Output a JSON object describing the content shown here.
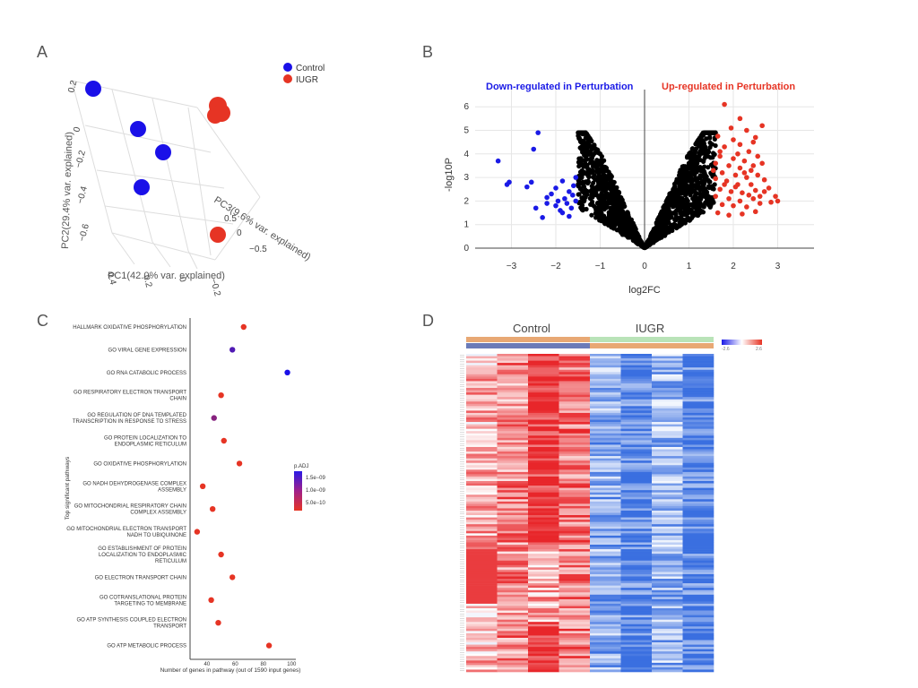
{
  "panels": {
    "a": {
      "letter": "A"
    },
    "b": {
      "letter": "B"
    },
    "c": {
      "letter": "C"
    },
    "d": {
      "letter": "D"
    }
  },
  "colors": {
    "control": "#1a10e8",
    "iugr": "#e63424",
    "down": "#1a1ae6",
    "up": "#e63424",
    "neutral": "#000000",
    "heat_low": "#3a6fe0",
    "heat_mid": "#ffffff",
    "heat_high": "#e8262a",
    "bar_control": "#e8a874",
    "bar_iugr": "#b9e3b8",
    "bar_sub_control": "#6b7bb8",
    "bar_sub_iugr": "#e8a874"
  },
  "chart_data": [
    {
      "type": "scatter",
      "panel": "A",
      "projection": "3d",
      "legend": [
        {
          "label": "Control",
          "color": "#1a10e8"
        },
        {
          "label": "IUGR",
          "color": "#e63424"
        }
      ],
      "legend_placement": "top-right",
      "xlabel": "PC1(42.0% var. explained)",
      "ylabel": "PC2(29.4% var. explained)",
      "zlabel": "PC3(9.6% var. explained)",
      "xticks": [
        "0.4",
        "0.2",
        "0",
        "−0.2"
      ],
      "yticks": [
        "0.2",
        "0",
        "−0.2",
        "−0.4",
        "−0.6"
      ],
      "zticks": [
        "0.5",
        "0",
        "−0.5"
      ],
      "series": [
        {
          "name": "Control",
          "points": [
            [
              0.3,
              0.22,
              0.3
            ],
            [
              0.1,
              0.02,
              0.0
            ],
            [
              0.02,
              -0.1,
              -0.1
            ],
            [
              0.12,
              -0.3,
              -0.1
            ]
          ]
        },
        {
          "name": "IUGR",
          "points": [
            [
              -0.12,
              0.13,
              0.45
            ],
            [
              -0.13,
              0.1,
              0.5
            ],
            [
              -0.15,
              0.12,
              0.4
            ],
            [
              -0.25,
              -0.55,
              -0.3
            ]
          ]
        }
      ]
    },
    {
      "type": "scatter",
      "panel": "B",
      "xlabel": "log2FC",
      "ylabel": "-log10P",
      "xlim": [
        -3.5,
        3.8
      ],
      "ylim": [
        0,
        6.3
      ],
      "xticks": [
        "−3",
        "−2",
        "−1",
        "0",
        "1",
        "2",
        "3"
      ],
      "yticks": [
        "0",
        "1",
        "2",
        "3",
        "4",
        "5",
        "6"
      ],
      "grid": true,
      "annotations": [
        {
          "text": "Down-regulated in Perturbation",
          "color": "#1a1ae6"
        },
        {
          "text": "Up-regulated in Perturbation",
          "color": "#e63424"
        }
      ],
      "down_points": [
        [
          -3.3,
          3.7
        ],
        [
          -3.1,
          2.7
        ],
        [
          -3.05,
          2.8
        ],
        [
          -2.65,
          2.6
        ],
        [
          -2.5,
          4.2
        ],
        [
          -2.4,
          4.9
        ],
        [
          -2.2,
          1.9
        ],
        [
          -2.45,
          1.7
        ],
        [
          -2.3,
          1.3
        ],
        [
          -2.1,
          2.3
        ],
        [
          -2.0,
          2.55
        ],
        [
          -1.95,
          2.0
        ],
        [
          -1.9,
          1.6
        ],
        [
          -1.85,
          2.85
        ],
        [
          -1.8,
          2.1
        ],
        [
          -1.75,
          1.9
        ],
        [
          -1.7,
          2.4
        ],
        [
          -1.65,
          1.7
        ],
        [
          -1.6,
          2.65
        ],
        [
          -1.55,
          3.0
        ],
        [
          -1.55,
          2.0
        ],
        [
          -1.85,
          1.5
        ],
        [
          -2.0,
          1.8
        ],
        [
          -2.2,
          2.15
        ],
        [
          -1.7,
          1.35
        ],
        [
          -2.55,
          2.8
        ],
        [
          -1.62,
          2.25
        ]
      ],
      "up_points": [
        [
          1.8,
          6.1
        ],
        [
          2.15,
          5.5
        ],
        [
          2.65,
          5.2
        ],
        [
          2.3,
          5.0
        ],
        [
          1.95,
          5.1
        ],
        [
          2.5,
          4.7
        ],
        [
          1.65,
          4.75
        ],
        [
          2.0,
          4.6
        ],
        [
          2.15,
          4.4
        ],
        [
          2.45,
          4.5
        ],
        [
          1.8,
          4.3
        ],
        [
          2.1,
          4.0
        ],
        [
          2.35,
          4.1
        ],
        [
          1.7,
          3.9
        ],
        [
          2.0,
          3.8
        ],
        [
          2.25,
          3.7
        ],
        [
          2.55,
          3.9
        ],
        [
          1.6,
          3.6
        ],
        [
          1.9,
          3.5
        ],
        [
          2.15,
          3.4
        ],
        [
          2.4,
          3.3
        ],
        [
          2.65,
          3.6
        ],
        [
          1.75,
          3.2
        ],
        [
          2.05,
          3.1
        ],
        [
          2.3,
          3.0
        ],
        [
          2.55,
          3.1
        ],
        [
          1.6,
          2.95
        ],
        [
          1.85,
          2.85
        ],
        [
          2.1,
          2.7
        ],
        [
          2.4,
          2.7
        ],
        [
          2.7,
          2.9
        ],
        [
          1.7,
          2.5
        ],
        [
          1.95,
          2.4
        ],
        [
          2.2,
          2.35
        ],
        [
          2.5,
          2.45
        ],
        [
          2.8,
          2.55
        ],
        [
          1.6,
          2.2
        ],
        [
          1.9,
          2.1
        ],
        [
          2.15,
          2.0
        ],
        [
          2.45,
          2.1
        ],
        [
          2.95,
          2.2
        ],
        [
          3.0,
          2.0
        ],
        [
          1.75,
          1.85
        ],
        [
          2.0,
          1.8
        ],
        [
          2.3,
          1.75
        ],
        [
          2.6,
          1.9
        ],
        [
          2.85,
          1.95
        ],
        [
          1.65,
          1.5
        ],
        [
          1.9,
          1.4
        ],
        [
          2.2,
          1.45
        ],
        [
          2.5,
          1.55
        ],
        [
          2.05,
          2.6
        ],
        [
          2.35,
          2.25
        ],
        [
          1.55,
          3.3
        ],
        [
          2.7,
          2.4
        ],
        [
          1.8,
          2.7
        ],
        [
          2.25,
          3.2
        ],
        [
          2.6,
          2.2
        ],
        [
          1.7,
          4.1
        ],
        [
          2.45,
          3.5
        ]
      ]
    },
    {
      "type": "scatter",
      "panel": "C",
      "xlabel": "Number of genes in pathway (out of 1590 input genes)",
      "ylabel": "Top significant pathways",
      "xlim": [
        28,
        103
      ],
      "xticks": [
        "40",
        "60",
        "80",
        "100"
      ],
      "legend_title": "p.ADJ",
      "legend_ticks": [
        "1.5e−09",
        "1.0e−09",
        "5.0e−10"
      ],
      "legend_placement": "right",
      "categories": [
        [
          "HALLMARK OXIDATIVE PHOSPHORYLATION"
        ],
        [
          "GO VIRAL GENE EXPRESSION"
        ],
        [
          "GO RNA CATABOLIC PROCESS"
        ],
        [
          "GO RESPIRATORY ELECTRON TRANSPORT",
          "CHAIN"
        ],
        [
          "GO REGULATION OF DNA TEMPLATED",
          "TRANSCRIPTION IN RESPONSE TO STRESS"
        ],
        [
          "GO PROTEIN LOCALIZATION TO",
          "ENDOPLASMIC RETICULUM"
        ],
        [
          "GO OXIDATIVE PHOSPHORYLATION"
        ],
        [
          "GO NADH DEHYDROGENASE COMPLEX",
          "ASSEMBLY"
        ],
        [
          "GO MITOCHONDRIAL RESPIRATORY CHAIN",
          "COMPLEX ASSEMBLY"
        ],
        [
          "GO MITOCHONDRIAL ELECTRON TRANSPORT",
          "NADH TO UBIQUINONE"
        ],
        [
          "GO ESTABLISHMENT OF PROTEIN",
          "LOCALIZATION TO ENDOPLASMIC",
          "RETICULUM"
        ],
        [
          "GO ELECTRON TRANSPORT CHAIN"
        ],
        [
          "GO COTRANSLATIONAL PROTEIN",
          "TARGETING TO MEMBRANE"
        ],
        [
          "GO ATP SYNTHESIS COUPLED ELECTRON",
          "TRANSPORT"
        ],
        [
          "GO ATP METABOLIC PROCESS"
        ]
      ],
      "values": [
        66,
        58,
        97,
        50,
        45,
        52,
        63,
        37,
        44,
        33,
        50,
        58,
        43,
        48,
        84
      ],
      "padj": [
        2e-10,
        1.3e-09,
        1.7e-09,
        2e-10,
        9e-10,
        2e-10,
        2e-10,
        2e-10,
        2e-10,
        2e-10,
        2e-10,
        2e-10,
        2e-10,
        2e-10,
        2e-10
      ]
    },
    {
      "type": "heatmap",
      "panel": "D",
      "groups": [
        {
          "label": "Control",
          "columns": 4
        },
        {
          "label": "IUGR",
          "columns": 4
        }
      ],
      "columns": 8,
      "row_count": 140,
      "column_means": [
        0.35,
        0.55,
        1.0,
        0.65,
        -0.55,
        -0.85,
        -0.5,
        -0.85
      ],
      "legend_ticks": [
        "-2.6",
        "2.6"
      ],
      "legend_placement": "top-right"
    }
  ]
}
